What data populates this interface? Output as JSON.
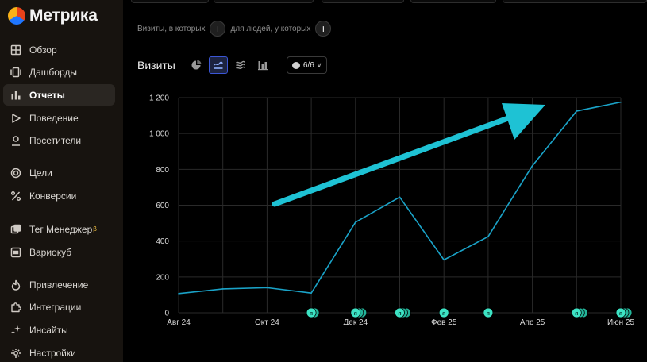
{
  "app": {
    "logo_text": "Метрика"
  },
  "sidebar": {
    "items": [
      {
        "label": "Обзор",
        "icon": "grid-icon"
      },
      {
        "label": "Дашборды",
        "icon": "dashboard-icon"
      },
      {
        "label": "Отчеты",
        "icon": "bar-chart-icon",
        "active": true
      },
      {
        "label": "Поведение",
        "icon": "play-icon"
      },
      {
        "label": "Посетители",
        "icon": "user-icon"
      },
      {
        "label": "Цели",
        "icon": "target-icon"
      },
      {
        "label": "Конверсии",
        "icon": "percent-icon"
      },
      {
        "label": "Тег Менеджер",
        "icon": "tag-manager-icon",
        "badge": "β"
      },
      {
        "label": "Вариокуб",
        "icon": "variocube-icon"
      },
      {
        "label": "Привлечение",
        "icon": "flame-icon"
      },
      {
        "label": "Интеграции",
        "icon": "puzzle-icon"
      },
      {
        "label": "Инсайты",
        "icon": "sparkle-icon"
      },
      {
        "label": "Настройки",
        "icon": "gear-icon"
      }
    ]
  },
  "filters": {
    "visits_label": "Визиты, в которых",
    "people_label": "для людей, у которых",
    "add_symbol": "+"
  },
  "chart_header": {
    "title": "Визиты",
    "annotations_count": "6/6"
  },
  "colors": {
    "line": "#1aa3c8",
    "arrow": "#1ec2d4",
    "marker": "#3de3c4",
    "grid": "#2a2a2a"
  },
  "chart_data": {
    "type": "line",
    "x": [
      "2024-08-01",
      "2024-09-01",
      "2024-10-01",
      "2024-11-01",
      "2024-12-01",
      "2025-01-01",
      "2025-02-01",
      "2025-03-01",
      "2025-04-01",
      "2025-05-01",
      "2025-06-01"
    ],
    "categories": [
      "Авг 24",
      "",
      "Окт 24",
      "",
      "Дек 24",
      "",
      "Фев 25",
      "",
      "Апр 25",
      "",
      "Июн 25"
    ],
    "values": [
      107,
      133,
      140,
      110,
      505,
      645,
      295,
      425,
      820,
      1125,
      1175
    ],
    "y_ticks": [
      "0",
      "200",
      "400",
      "600",
      "800",
      "1 000",
      "1 200"
    ],
    "ylim": [
      0,
      1200
    ],
    "grid": true,
    "annotation_markers": [
      {
        "x": "2024-11-01",
        "count": 2
      },
      {
        "x": "2024-12-01",
        "count": 3
      },
      {
        "x": "2025-01-01",
        "count": 3
      },
      {
        "x": "2025-02-01",
        "count": 1
      },
      {
        "x": "2025-03-01",
        "count": 1
      },
      {
        "x": "2025-05-01",
        "count": 3
      },
      {
        "x": "2025-06-01",
        "count": 3
      }
    ],
    "marker_glyph": "я"
  }
}
